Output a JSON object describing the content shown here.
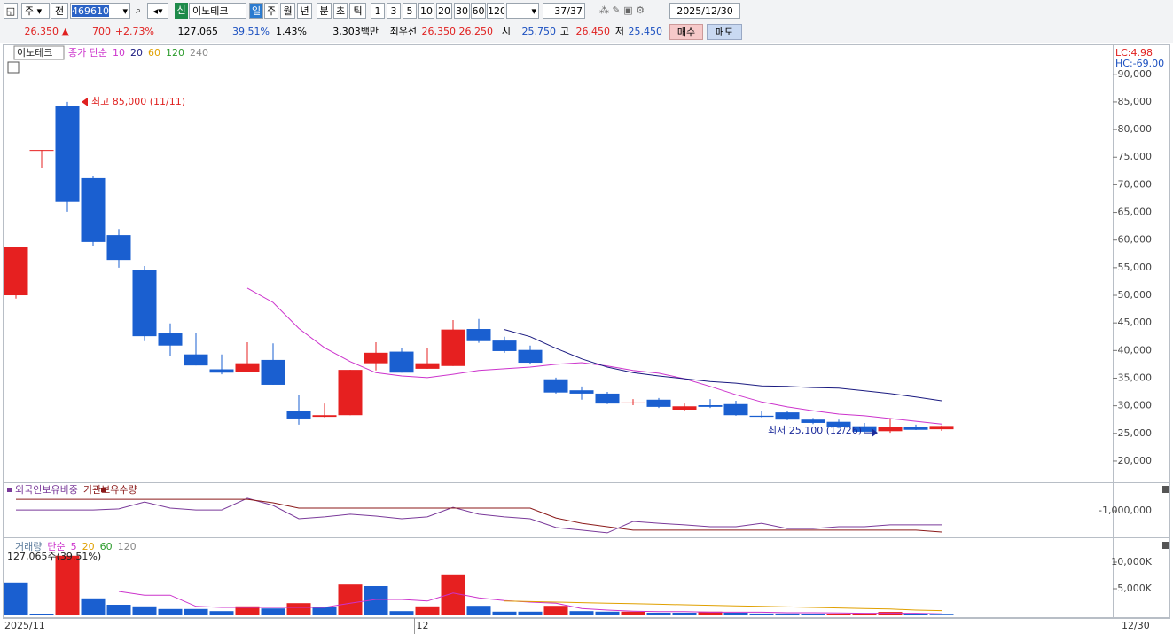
{
  "toolbar": {
    "market": "주",
    "scope": "전",
    "code": "469610",
    "badge": "신",
    "name": "이노테크",
    "periods": [
      "일",
      "주",
      "월",
      "년",
      "분",
      "초",
      "틱"
    ],
    "intervals": [
      "1",
      "3",
      "5",
      "10",
      "20",
      "30",
      "60",
      "120"
    ],
    "count": "37/37",
    "date": "2025/12/30"
  },
  "quote": {
    "price": "26,350 ▲",
    "change": "700",
    "rate": "+2.73%",
    "volume": "127,065",
    "volume_rate": "39.51%",
    "turnover": "1.43%",
    "amount": "3,303백만",
    "best_label": "최우선",
    "ask": "26,350",
    "bid": "26,250",
    "open_label": "시",
    "open": "25,750",
    "high_label": "고",
    "high": "26,450",
    "low_label": "저",
    "low": "25,450",
    "buy": "매수",
    "sell": "매도"
  },
  "chart_data": [
    {
      "type": "candlestick",
      "title": "이노테크",
      "ma_label": "종가 단순",
      "categories": [
        "2025/11",
        null,
        null,
        null,
        null,
        null,
        null,
        null,
        null,
        null,
        null,
        null,
        null,
        null,
        null,
        null,
        "12",
        null,
        null,
        null,
        null,
        null,
        null,
        null,
        null,
        null,
        null,
        null,
        null,
        null,
        null,
        null,
        null,
        null,
        null,
        null,
        null
      ],
      "last_date": "12/30",
      "open": [
        50000,
        76300,
        84200,
        71200,
        60900,
        54500,
        43100,
        39300,
        36600,
        36200,
        38300,
        29100,
        28000,
        28300,
        37700,
        39800,
        36700,
        37200,
        43900,
        41800,
        40100,
        34800,
        32800,
        32200,
        30500,
        31100,
        29300,
        30100,
        30300,
        28200,
        28800,
        27500,
        27100,
        26300,
        25400,
        26100,
        25750
      ],
      "high": [
        58700,
        76300,
        85000,
        71500,
        62000,
        55300,
        44900,
        43100,
        39300,
        41500,
        41300,
        31900,
        30400,
        36500,
        41500,
        40400,
        40500,
        45500,
        45700,
        42500,
        40900,
        35100,
        33500,
        32500,
        31200,
        31400,
        30400,
        31200,
        30900,
        29100,
        29100,
        27800,
        27500,
        26900,
        27800,
        26600,
        26450
      ],
      "low": [
        49400,
        73000,
        65100,
        59000,
        55000,
        41700,
        39000,
        37300,
        35700,
        36200,
        33800,
        26600,
        27900,
        28300,
        36400,
        36000,
        36700,
        37200,
        41400,
        39600,
        37500,
        32200,
        31100,
        30300,
        30100,
        29600,
        29000,
        29600,
        28200,
        27900,
        27400,
        26700,
        25900,
        25200,
        25100,
        25600,
        25450
      ],
      "close": [
        58700,
        76300,
        66900,
        59650,
        56400,
        42600,
        40900,
        37300,
        36000,
        37700,
        33800,
        27700,
        28300,
        36500,
        39600,
        36000,
        37700,
        43800,
        41700,
        39900,
        37800,
        32400,
        32200,
        30400,
        30600,
        29800,
        29900,
        29800,
        28300,
        28000,
        27500,
        26900,
        26100,
        25300,
        26200,
        25650,
        26350
      ],
      "up_color": "#e62020",
      "down_color": "#1a5fd0",
      "series": [
        {
          "name": "10",
          "color": "#cc33cc",
          "values": [
            null,
            null,
            null,
            null,
            null,
            null,
            null,
            null,
            null,
            51300,
            48700,
            44000,
            40500,
            38000,
            36000,
            35400,
            35100,
            35700,
            36400,
            36700,
            37000,
            37500,
            37800,
            37200,
            36400,
            35900,
            34900,
            33500,
            32000,
            30700,
            29800,
            29100,
            28500,
            28200,
            27700,
            27200,
            26700
          ]
        },
        {
          "name": "20",
          "color": "#1a1a80",
          "values": [
            null,
            null,
            null,
            null,
            null,
            null,
            null,
            null,
            null,
            null,
            null,
            null,
            null,
            null,
            null,
            null,
            null,
            null,
            null,
            43800,
            42500,
            40400,
            38500,
            37000,
            36000,
            35400,
            34900,
            34400,
            34100,
            33600,
            33500,
            33300,
            33200,
            32700,
            32200,
            31600,
            30900
          ]
        }
      ],
      "inactive_series": [
        {
          "name": "60",
          "color": "#e0a000"
        },
        {
          "name": "120",
          "color": "#2a9a2a"
        },
        {
          "name": "240",
          "color": "#888888"
        }
      ],
      "annotations": [
        {
          "text": "최고 85,000 (11/11)",
          "value": 85000,
          "of": "high",
          "color": "#e0201f"
        },
        {
          "text": "최저 25,100 (12/26)",
          "value": 25100,
          "of": "low",
          "color": "#1a2a9a"
        }
      ],
      "lc_label": "LC:4.98",
      "hc_label": "HC:-69.00",
      "ylim": [
        16300,
        95100
      ],
      "yticks": [
        {
          "value": 20000,
          "label": "20,000"
        },
        {
          "value": 25000,
          "label": "25,000"
        },
        {
          "value": 30000,
          "label": "30,000"
        },
        {
          "value": 35000,
          "label": "35,000"
        },
        {
          "value": 40000,
          "label": "40,000"
        },
        {
          "value": 45000,
          "label": "45,000"
        },
        {
          "value": 50000,
          "label": "50,000"
        },
        {
          "value": 55000,
          "label": "55,000"
        },
        {
          "value": 60000,
          "label": "60,000"
        },
        {
          "value": 65000,
          "label": "65,000"
        },
        {
          "value": 70000,
          "label": "70,000"
        },
        {
          "value": 75000,
          "label": "75,000"
        },
        {
          "value": 80000,
          "label": "80,000"
        },
        {
          "value": 85000,
          "label": "85,000"
        },
        {
          "value": 90000,
          "label": "90,000"
        }
      ]
    },
    {
      "type": "line",
      "series": [
        {
          "name": "외국인보유비중",
          "color": "#7a3a9a",
          "values": [
            -970000,
            -970000,
            -970000,
            -970000,
            -930000,
            -670000,
            -900000,
            -970000,
            -970000,
            -530000,
            -800000,
            -1300000,
            -1230000,
            -1130000,
            -1200000,
            -1300000,
            -1230000,
            -870000,
            -1130000,
            -1230000,
            -1300000,
            -1630000,
            -1730000,
            -1830000,
            -1400000,
            -1470000,
            -1530000,
            -1600000,
            -1600000,
            -1470000,
            -1670000,
            -1670000,
            -1600000,
            -1600000,
            -1530000,
            -1530000,
            -1530000
          ]
        },
        {
          "name": "기관보유수량",
          "color": "#8b1a1a",
          "values": [
            -570000,
            -570000,
            -570000,
            -570000,
            -570000,
            -570000,
            -570000,
            -570000,
            -570000,
            -570000,
            -700000,
            -900000,
            -900000,
            -900000,
            -900000,
            -900000,
            -900000,
            -900000,
            -900000,
            -900000,
            -900000,
            -1270000,
            -1470000,
            -1600000,
            -1730000,
            -1730000,
            -1730000,
            -1730000,
            -1730000,
            -1730000,
            -1730000,
            -1730000,
            -1730000,
            -1730000,
            -1730000,
            -1730000,
            -1800000
          ]
        }
      ],
      "ylim": [
        -2000000,
        0
      ],
      "yticks": [
        {
          "value": -1000000,
          "label": "-1,000,000"
        }
      ]
    },
    {
      "type": "bar",
      "title": "거래량",
      "ma_label": "단순",
      "info": "127,065주(39.51%)",
      "values": [
        6200,
        330,
        11200,
        3200,
        2000,
        1700,
        1200,
        1200,
        800,
        1700,
        1300,
        2300,
        1500,
        5800,
        5500,
        800,
        1700,
        7700,
        1800,
        700,
        700,
        1800,
        800,
        700,
        700,
        500,
        500,
        700,
        500,
        350,
        350,
        250,
        300,
        300,
        650,
        300,
        127
      ],
      "bar_colors": [
        "#1a5fd0",
        "#1a5fd0",
        "#e62020",
        "#1a5fd0",
        "#1a5fd0",
        "#1a5fd0",
        "#1a5fd0",
        "#1a5fd0",
        "#1a5fd0",
        "#e62020",
        "#1a5fd0",
        "#e62020",
        "#1a5fd0",
        "#e62020",
        "#1a5fd0",
        "#1a5fd0",
        "#e62020",
        "#e62020",
        "#1a5fd0",
        "#1a5fd0",
        "#1a5fd0",
        "#e62020",
        "#1a5fd0",
        "#1a5fd0",
        "#e62020",
        "#1a5fd0",
        "#1a5fd0",
        "#e62020",
        "#1a5fd0",
        "#1a5fd0",
        "#1a5fd0",
        "#1a5fd0",
        "#e62020",
        "#e62020",
        "#e62020",
        "#1a5fd0",
        "#1a5fd0"
      ],
      "series": [
        {
          "name": "5",
          "color": "#cc33cc",
          "values": [
            null,
            null,
            null,
            null,
            4500,
            3800,
            3800,
            1700,
            1500,
            1500,
            1500,
            1500,
            1500,
            2300,
            3000,
            3000,
            2700,
            4200,
            3300,
            2800,
            2500,
            2300,
            1300,
            1000,
            800,
            700,
            700,
            600,
            600,
            600,
            500,
            500,
            450,
            400,
            400,
            400,
            300
          ]
        },
        {
          "name": "20",
          "color": "#e0a000",
          "values": [
            null,
            null,
            null,
            null,
            null,
            null,
            null,
            null,
            null,
            null,
            null,
            null,
            null,
            null,
            null,
            null,
            null,
            null,
            null,
            2700,
            2600,
            2500,
            2400,
            2300,
            2200,
            2100,
            2000,
            1900,
            1800,
            1700,
            1600,
            1500,
            1400,
            1300,
            1200,
            1000,
            900
          ]
        }
      ],
      "inactive_series": [
        {
          "name": "60",
          "color": "#2a9a2a"
        },
        {
          "name": "120",
          "color": "#888888"
        }
      ],
      "ylim": [
        0,
        14000
      ],
      "yticks": [
        {
          "value": 5000,
          "label": "5,000K"
        },
        {
          "value": 10000,
          "label": "10,000K"
        }
      ]
    }
  ]
}
